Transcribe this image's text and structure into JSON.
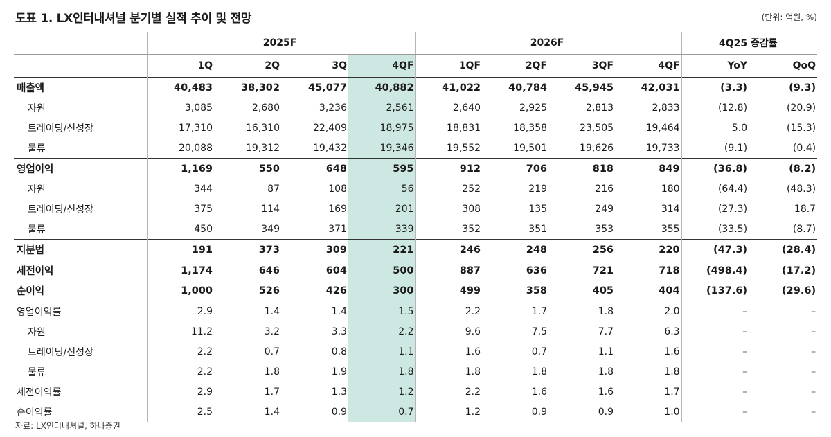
{
  "title": "도표 1. LX인터내셔널 분기별 실적 추이 및 전망",
  "unit": "(단위: 억원, %)",
  "source": "자료: LX인터내셔널, 하나증권",
  "header": {
    "group_2025": "2025F",
    "group_2026": "2026F",
    "group_change": "4Q25 증감률",
    "quarters": [
      "1Q",
      "2Q",
      "3Q",
      "4QF",
      "1QF",
      "2QF",
      "3QF",
      "4QF",
      "YoY",
      "QoQ"
    ]
  },
  "rows": [
    {
      "label": "매출액",
      "values": [
        "40,483",
        "38,302",
        "45,077",
        "40,882",
        "41,022",
        "40,784",
        "45,945",
        "42,031",
        "(3.3)",
        "(9.3)"
      ]
    },
    {
      "label": "자원",
      "values": [
        "3,085",
        "2,680",
        "3,236",
        "2,561",
        "2,640",
        "2,925",
        "2,813",
        "2,833",
        "(12.8)",
        "(20.9)"
      ]
    },
    {
      "label": "트레이딩/신성장",
      "values": [
        "17,310",
        "16,310",
        "22,409",
        "18,975",
        "18,831",
        "18,358",
        "23,505",
        "19,464",
        "5.0",
        "(15.3)"
      ]
    },
    {
      "label": "물류",
      "values": [
        "20,088",
        "19,312",
        "19,432",
        "19,346",
        "19,552",
        "19,501",
        "19,626",
        "19,733",
        "(9.1)",
        "(0.4)"
      ]
    },
    {
      "label": "영업이익",
      "values": [
        "1,169",
        "550",
        "648",
        "595",
        "912",
        "706",
        "818",
        "849",
        "(36.8)",
        "(8.2)"
      ]
    },
    {
      "label": "자원",
      "values": [
        "344",
        "87",
        "108",
        "56",
        "252",
        "219",
        "216",
        "180",
        "(64.4)",
        "(48.3)"
      ]
    },
    {
      "label": "트레이딩/신성장",
      "values": [
        "375",
        "114",
        "169",
        "201",
        "308",
        "135",
        "249",
        "314",
        "(27.3)",
        "18.7"
      ]
    },
    {
      "label": "물류",
      "values": [
        "450",
        "349",
        "371",
        "339",
        "352",
        "351",
        "353",
        "355",
        "(33.5)",
        "(8.7)"
      ]
    },
    {
      "label": "지분법",
      "values": [
        "191",
        "373",
        "309",
        "221",
        "246",
        "248",
        "256",
        "220",
        "(47.3)",
        "(28.4)"
      ]
    },
    {
      "label": "세전이익",
      "values": [
        "1,174",
        "646",
        "604",
        "500",
        "887",
        "636",
        "721",
        "718",
        "(498.4)",
        "(17.2)"
      ]
    },
    {
      "label": "순이익",
      "values": [
        "1,000",
        "526",
        "426",
        "300",
        "499",
        "358",
        "405",
        "404",
        "(137.6)",
        "(29.6)"
      ]
    },
    {
      "label": "영업이익률",
      "values": [
        "2.9",
        "1.4",
        "1.4",
        "1.5",
        "2.2",
        "1.7",
        "1.8",
        "2.0",
        "–",
        "–"
      ]
    },
    {
      "label": "자원",
      "values": [
        "11.2",
        "3.2",
        "3.3",
        "2.2",
        "9.6",
        "7.5",
        "7.7",
        "6.3",
        "–",
        "–"
      ]
    },
    {
      "label": "트레이딩/신성장",
      "values": [
        "2.2",
        "0.7",
        "0.8",
        "1.1",
        "1.6",
        "0.7",
        "1.1",
        "1.6",
        "–",
        "–"
      ]
    },
    {
      "label": "물류",
      "values": [
        "2.2",
        "1.8",
        "1.9",
        "1.8",
        "1.8",
        "1.8",
        "1.8",
        "1.8",
        "–",
        "–"
      ]
    },
    {
      "label": "세전이익률",
      "values": [
        "2.9",
        "1.7",
        "1.3",
        "1.2",
        "2.2",
        "1.6",
        "1.6",
        "1.7",
        "–",
        "–"
      ]
    },
    {
      "label": "순이익률",
      "values": [
        "2.5",
        "1.4",
        "0.9",
        "0.7",
        "1.2",
        "0.9",
        "0.9",
        "1.0",
        "–",
        "–"
      ]
    }
  ],
  "colors": {
    "highlight": "#cde8e2"
  }
}
